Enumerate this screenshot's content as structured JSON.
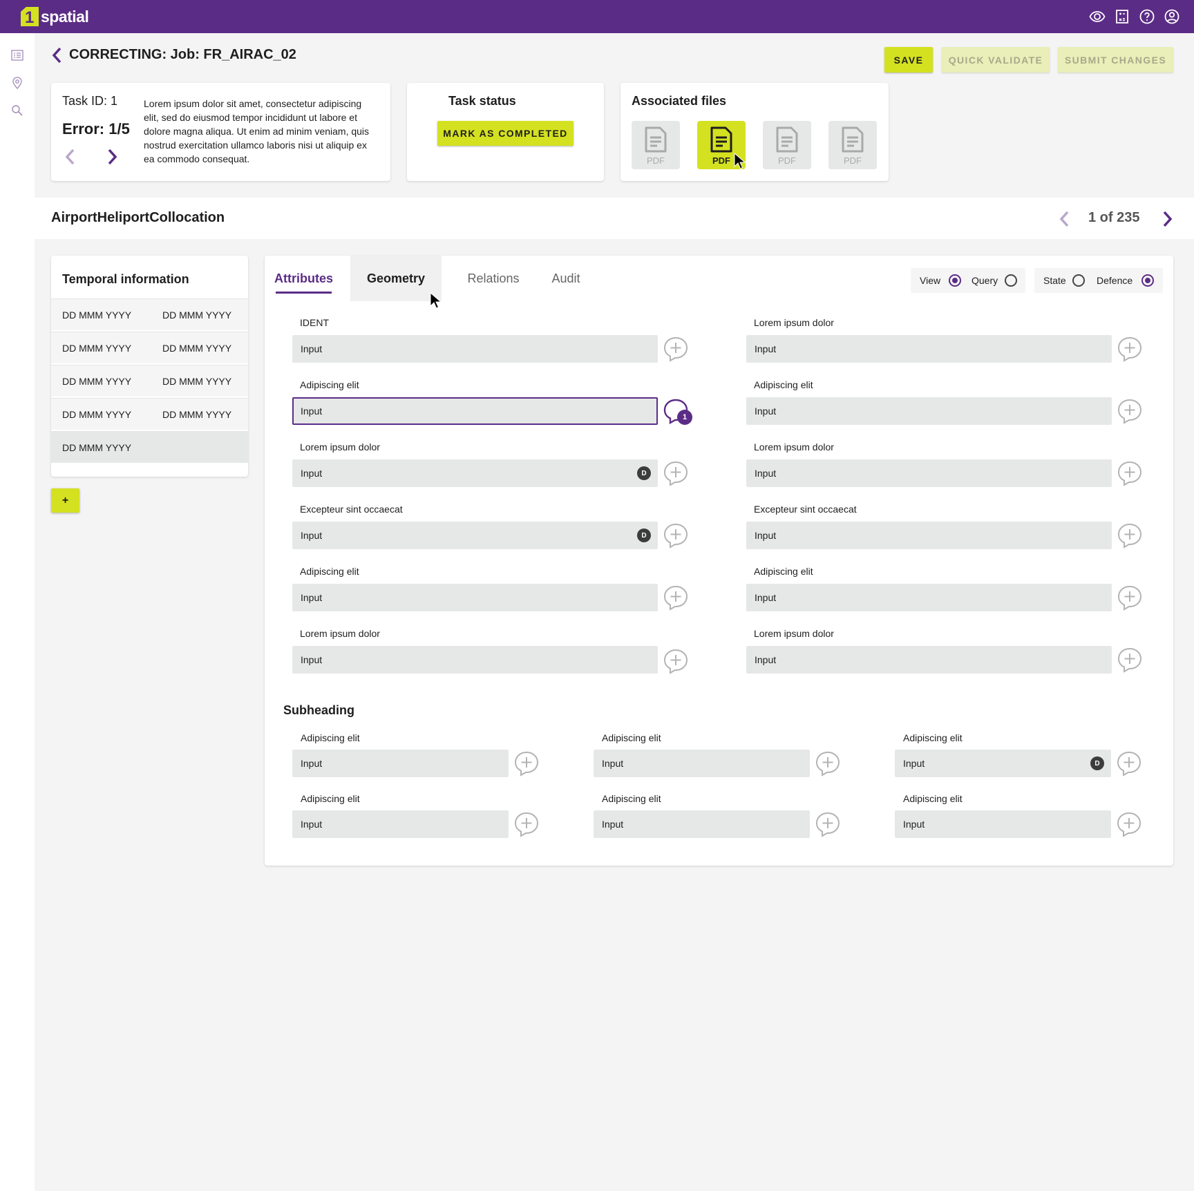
{
  "app": {
    "logo_one": "1",
    "logo_text": "spatial"
  },
  "header": {
    "title": "CORRECTING: Job: FR_AIRAC_02",
    "save_label": "SAVE",
    "quick_validate_label": "QUICK VALIDATE",
    "submit_label": "SUBMIT CHANGES"
  },
  "task": {
    "id_label": "Task ID: 1",
    "error_label": "Error: 1/5",
    "description": "Lorem ipsum dolor sit amet, consectetur adipiscing elit, sed do eiusmod tempor incididunt ut labore et dolore magna aliqua. Ut enim ad minim veniam, quis nostrud exercitation ullamco laboris nisi ut aliquip ex ea commodo consequat."
  },
  "status": {
    "title": "Task status",
    "button_label": "MARK AS COMPLETED"
  },
  "files": {
    "title": "Associated files",
    "items": [
      {
        "label": "PDF",
        "active": false
      },
      {
        "label": "PDF",
        "active": true
      },
      {
        "label": "PDF",
        "active": false
      },
      {
        "label": "PDF",
        "active": false
      }
    ]
  },
  "feature": {
    "name": "AirportHeliportCollocation",
    "pager": "1 of 235"
  },
  "temporal": {
    "title": "Temporal information",
    "rows": [
      [
        "DD MMM YYYY",
        "DD MMM YYYY"
      ],
      [
        "DD MMM YYYY",
        "DD MMM YYYY"
      ],
      [
        "DD MMM YYYY",
        "DD MMM YYYY"
      ],
      [
        "DD MMM YYYY",
        "DD MMM YYYY"
      ],
      [
        "DD MMM YYYY",
        ""
      ]
    ],
    "add_label": "+"
  },
  "tabs": [
    "Attributes",
    "Geometry",
    "Relations",
    "Audit"
  ],
  "toggles": {
    "view_label": "View",
    "query_label": "Query",
    "state_label": "State",
    "defence_label": "Defence"
  },
  "fields_left": [
    {
      "label": "IDENT",
      "value": "Input"
    },
    {
      "label": "Adipiscing elit",
      "value": "Input",
      "comments": "1"
    },
    {
      "label": "Lorem ipsum dolor",
      "value": "Input",
      "badge": "D"
    },
    {
      "label": "Excepteur sint occaecat",
      "value": "Input",
      "badge": "D"
    },
    {
      "label": "Adipiscing elit",
      "value": "Input"
    },
    {
      "label": "Lorem ipsum dolor",
      "value": "Input"
    }
  ],
  "fields_right": [
    {
      "label": "Lorem ipsum dolor",
      "value": "Input"
    },
    {
      "label": "Adipiscing elit",
      "value": "Input"
    },
    {
      "label": "Lorem ipsum dolor",
      "value": "Input"
    },
    {
      "label": "Excepteur sint occaecat",
      "value": "Input"
    },
    {
      "label": "Adipiscing elit",
      "value": "Input"
    },
    {
      "label": "Lorem ipsum dolor",
      "value": "Input"
    }
  ],
  "subheading": "Subheading",
  "sub_fields": [
    {
      "label": "Adipiscing elit",
      "value": "Input"
    },
    {
      "label": "Adipiscing elit",
      "value": "Input"
    },
    {
      "label": "Adipiscing elit",
      "value": "Input",
      "badge": "D"
    },
    {
      "label": "Adipiscing elit",
      "value": "Input"
    },
    {
      "label": "Adipiscing elit",
      "value": "Input"
    },
    {
      "label": "Adipiscing elit",
      "value": "Input"
    }
  ],
  "colors": {
    "brand_purple": "#5b2c86",
    "accent_lime": "#d4e120",
    "input_bg": "#e6e8e8"
  },
  "icons": [
    "eye-icon",
    "calculator-icon",
    "help-icon",
    "account-icon",
    "list-icon",
    "location-pin-icon",
    "search-icon",
    "chevron-left-icon",
    "chevron-right-icon",
    "document-icon",
    "add-comment-icon"
  ]
}
